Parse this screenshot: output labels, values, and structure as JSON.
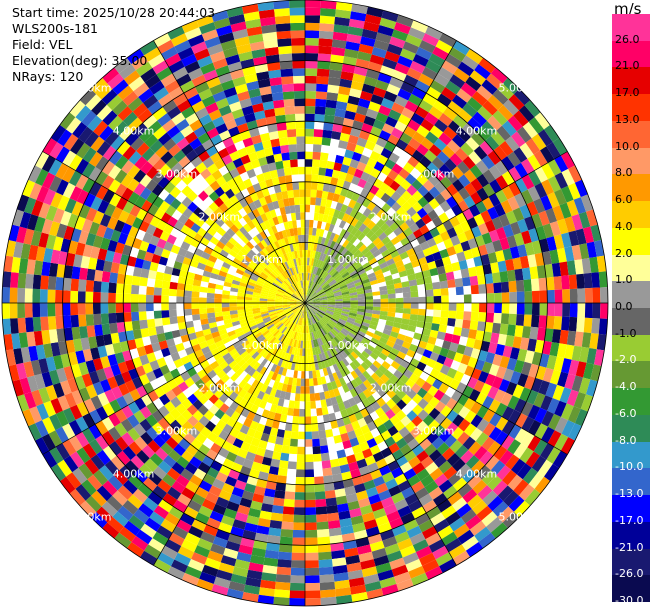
{
  "header": {
    "start_time": "Start time: 2025/10/28 20:44:03",
    "site": "WLS200s-181",
    "field": "Field: VEL",
    "elevation": "Elevation(deg): 35.00",
    "nrays": "NRays: 120"
  },
  "colorbar": {
    "unit": "m/s",
    "labels": [
      "26.0",
      "21.0",
      "17.0",
      "13.0",
      "10.0",
      "8.0",
      "6.0",
      "4.0",
      "2.0",
      "1.0",
      "0.0",
      "-1.0",
      "-2.0",
      "-4.0",
      "-6.0",
      "-8.0",
      "-10.0",
      "-13.0",
      "-17.0",
      "-21.0",
      "-26.0",
      "-30.0"
    ],
    "colors": [
      "#ff3399",
      "#ff0066",
      "#e60000",
      "#ff3300",
      "#ff6633",
      "#ff9966",
      "#ff9900",
      "#ffcc00",
      "#ffff00",
      "#ffff99",
      "#999999",
      "#666666",
      "#99cc33",
      "#669933",
      "#339933",
      "#2e8b57",
      "#3399cc",
      "#3366cc",
      "#0000ff",
      "#000099",
      "#191970",
      "#0a0a50"
    ]
  },
  "chart_data": {
    "type": "polar",
    "title": "",
    "field": "VEL",
    "unit": "m/s",
    "nrays": 120,
    "elevation_deg": 35.0,
    "range_rings_km": [
      1.0,
      2.0,
      3.0,
      4.0,
      5.0
    ],
    "ring_labels": [
      "1.00km",
      "2.00km",
      "3.00km",
      "4.00km",
      "5.00km"
    ],
    "range_max_km": 5.0,
    "gates": 40,
    "spokes_deg": [
      0,
      30,
      60,
      90,
      120,
      150,
      180,
      210,
      240,
      270,
      300,
      330
    ]
  }
}
